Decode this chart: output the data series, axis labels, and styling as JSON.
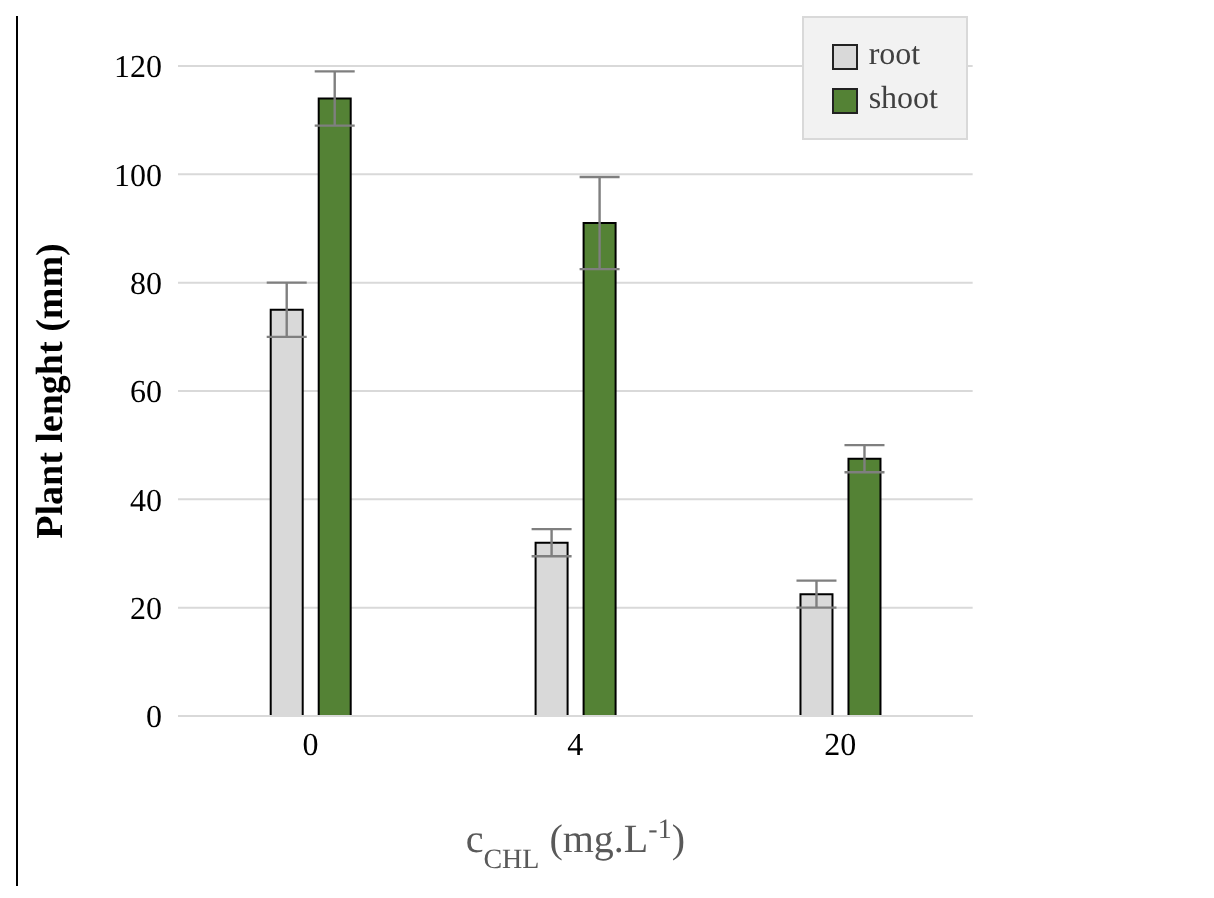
{
  "chart_data": {
    "type": "bar",
    "xlabel": "c$_{CHL}$ (mg.L$^{-1}$)",
    "ylabel": "Plant lenght (mm)",
    "categories": [
      "0",
      "4",
      "20"
    ],
    "series": [
      {
        "name": "root",
        "color": "#d9d9d9",
        "values": [
          75,
          32,
          22.5
        ],
        "errors": [
          5,
          2.5,
          2.5
        ]
      },
      {
        "name": "shoot",
        "color": "#548235",
        "values": [
          114,
          91,
          47.5
        ],
        "errors": [
          5,
          8.5,
          2.5
        ]
      }
    ],
    "ylim": [
      0,
      120
    ],
    "yticks": [
      0,
      20,
      40,
      60,
      80,
      100,
      120
    ],
    "grid": "y",
    "legend": "top right"
  }
}
